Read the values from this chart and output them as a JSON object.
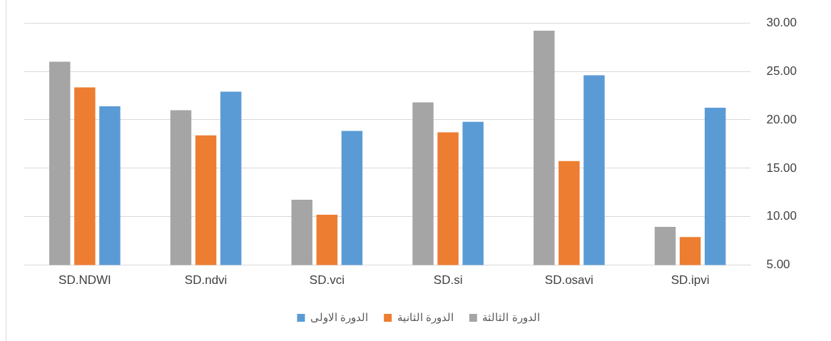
{
  "chart_data": {
    "type": "bar",
    "categories": [
      "SD.NDWI",
      "SD.ndvi",
      "SD.vci",
      "SD.si",
      "SD.osavi",
      "SD.ipvi"
    ],
    "series": [
      {
        "name": "الدورة الثالثة",
        "color": "#a5a5a5",
        "values": [
          26.0,
          21.0,
          11.75,
          21.8,
          29.2,
          8.95
        ]
      },
      {
        "name": "الدورة الثانية",
        "color": "#ed7d31",
        "values": [
          23.35,
          18.4,
          10.2,
          18.7,
          15.75,
          7.9
        ]
      },
      {
        "name": "الدورة الاولى",
        "color": "#5b9bd5",
        "values": [
          21.4,
          22.9,
          18.85,
          19.8,
          24.6,
          21.25
        ]
      }
    ],
    "ylim": [
      5,
      30
    ],
    "yticks": [
      {
        "value": 5,
        "label": "5.00"
      },
      {
        "value": 10,
        "label": "10.00"
      },
      {
        "value": 15,
        "label": "15.00"
      },
      {
        "value": 20,
        "label": "20.00"
      },
      {
        "value": 25,
        "label": "25.00"
      },
      {
        "value": 30,
        "label": "30.00"
      }
    ],
    "grid": "y",
    "legend": "bottom"
  }
}
